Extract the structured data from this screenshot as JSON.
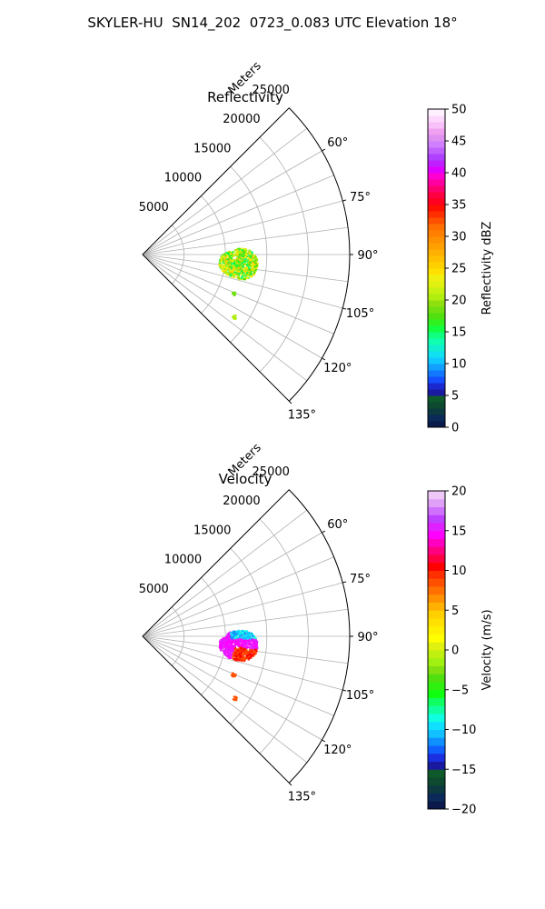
{
  "title": "SKYLER-HU  SN14_202  0723_0.083 UTC Elevation 18°",
  "chart_data": [
    {
      "type": "heatmap",
      "projection": "polar-sector",
      "title": "Reflectivity",
      "range_label": "Meters",
      "range_ticks": [
        5000,
        10000,
        15000,
        20000,
        25000
      ],
      "range_max": 25000,
      "azimuth_ticks": [
        60,
        75,
        90,
        105,
        120,
        135
      ],
      "azimuth_tick_labels": [
        "60°",
        "75°",
        "90°",
        "105°",
        "120°",
        "135°"
      ],
      "azimuth_range": [
        45,
        135
      ],
      "grid": true,
      "colorbar": {
        "label": "Reflectivity dBZ",
        "min": 0,
        "max": 50,
        "ticks": [
          0,
          5,
          10,
          15,
          20,
          25,
          30,
          35,
          40,
          45,
          50
        ],
        "tick_labels": [
          "0",
          "5",
          "10",
          "15",
          "20",
          "25",
          "30",
          "35",
          "40",
          "45",
          "50"
        ]
      },
      "echo_regions": [
        {
          "az_range": [
            86,
            104
          ],
          "range_m": [
            9200,
            13800
          ],
          "value_range": [
            14,
            26
          ],
          "description_value": 18
        },
        {
          "az_range": [
            112,
            114
          ],
          "range_m": [
            11500,
            12000
          ],
          "value_range": [
            18,
            18
          ],
          "description_value": 18
        },
        {
          "az_range": [
            123,
            125
          ],
          "range_m": [
            13000,
            13500
          ],
          "value_range": [
            20,
            20
          ],
          "description_value": 20
        }
      ]
    },
    {
      "type": "heatmap",
      "projection": "polar-sector",
      "title": "Velocity",
      "range_label": "Meters",
      "range_ticks": [
        5000,
        10000,
        15000,
        20000,
        25000
      ],
      "range_max": 25000,
      "azimuth_ticks": [
        60,
        75,
        90,
        105,
        120,
        135
      ],
      "azimuth_tick_labels": [
        "60°",
        "75°",
        "90°",
        "105°",
        "120°",
        "135°"
      ],
      "azimuth_range": [
        45,
        135
      ],
      "grid": true,
      "colorbar": {
        "label": "Velocity (m/s)",
        "min": -20,
        "max": 20,
        "ticks": [
          -20,
          -15,
          -10,
          -5,
          0,
          5,
          10,
          15,
          20
        ],
        "tick_labels": [
          "−20",
          "−15",
          "−10",
          "−5",
          "0",
          "5",
          "10",
          "15",
          "20"
        ]
      },
      "echo_regions": [
        {
          "az_range": [
            86,
            104
          ],
          "range_m": [
            9200,
            13800
          ],
          "value_range": [
            -12,
            15
          ],
          "description_value": 13
        },
        {
          "az_range": [
            112,
            114
          ],
          "range_m": [
            11500,
            12000
          ],
          "value_range": [
            8,
            8
          ],
          "description_value": 8
        },
        {
          "az_range": [
            123,
            125
          ],
          "range_m": [
            13000,
            13500
          ],
          "value_range": [
            8,
            8
          ],
          "description_value": 8
        }
      ]
    }
  ]
}
